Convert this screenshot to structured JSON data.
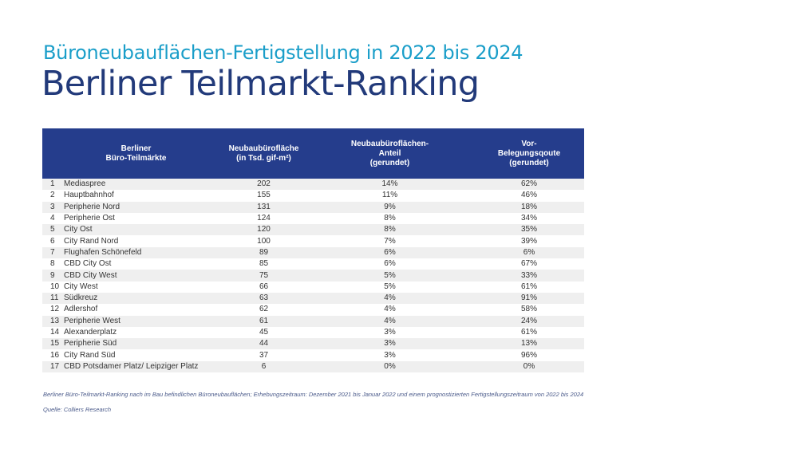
{
  "header": {
    "subtitle": "Büroneubauflächen-Fertigstellung in 2022 bis 2024",
    "title": "Berliner Teilmarkt-Ranking"
  },
  "table": {
    "columns": [
      "Berliner\nBüro-Teilmärkte",
      "Neubaubürofläche\n(in Tsd. gif-m²)",
      "Neubaubüroflächen-\nAnteil\n(gerundet)",
      "Vor-\nBelegungsqoute\n(gerundet)"
    ],
    "rows": [
      {
        "rank": "1",
        "name": "Mediaspree",
        "area": "202",
        "share": "14%",
        "prelet": "62%"
      },
      {
        "rank": "2",
        "name": "Hauptbahnhof",
        "area": "155",
        "share": "11%",
        "prelet": "46%"
      },
      {
        "rank": "3",
        "name": "Peripherie  Nord",
        "area": "131",
        "share": "9%",
        "prelet": "18%"
      },
      {
        "rank": "4",
        "name": "Peripherie  Ost",
        "area": "124",
        "share": "8%",
        "prelet": "34%"
      },
      {
        "rank": "5",
        "name": "City Ost",
        "area": "120",
        "share": "8%",
        "prelet": "35%"
      },
      {
        "rank": "6",
        "name": "City Rand  Nord",
        "area": "100",
        "share": "7%",
        "prelet": "39%"
      },
      {
        "rank": "7",
        "name": "Flughafen  Schönefeld",
        "area": "89",
        "share": "6%",
        "prelet": "6%"
      },
      {
        "rank": "8",
        "name": "CBD City Ost",
        "area": "85",
        "share": "6%",
        "prelet": "67%"
      },
      {
        "rank": "9",
        "name": "CBD City West",
        "area": "75",
        "share": "5%",
        "prelet": "33%"
      },
      {
        "rank": "10",
        "name": "City West",
        "area": "66",
        "share": "5%",
        "prelet": "61%"
      },
      {
        "rank": "11",
        "name": "Südkreuz",
        "area": "63",
        "share": "4%",
        "prelet": "91%"
      },
      {
        "rank": "12",
        "name": "Adlershof",
        "area": "62",
        "share": "4%",
        "prelet": "58%"
      },
      {
        "rank": "13",
        "name": "Peripherie  West",
        "area": "61",
        "share": "4%",
        "prelet": "24%"
      },
      {
        "rank": "14",
        "name": "Alexanderplatz",
        "area": "45",
        "share": "3%",
        "prelet": "61%"
      },
      {
        "rank": "15",
        "name": "Peripherie  Süd",
        "area": "44",
        "share": "3%",
        "prelet": "13%"
      },
      {
        "rank": "16",
        "name": "City Rand  Süd",
        "area": "37",
        "share": "3%",
        "prelet": "96%"
      },
      {
        "rank": "17",
        "name": "CBD Potsdamer Platz/ Leipziger  Platz",
        "area": "6",
        "share": "0%",
        "prelet": "0%"
      }
    ]
  },
  "footnote": "Berliner Büro-Teilmarkt-Ranking nach im Bau befindlichen Büroneubauflächen; Erhebungszeitraum: Dezember 2021 bis  Januar 2022 und einem prognostizierten Fertigstellungszeitraum von 2022 bis 2024",
  "source": "Quelle: Colliers Research",
  "colors": {
    "subtitle": "#1a9ec9",
    "title": "#223a7a",
    "header_bg": "#253d8c",
    "row_stripe": "#efefef"
  }
}
